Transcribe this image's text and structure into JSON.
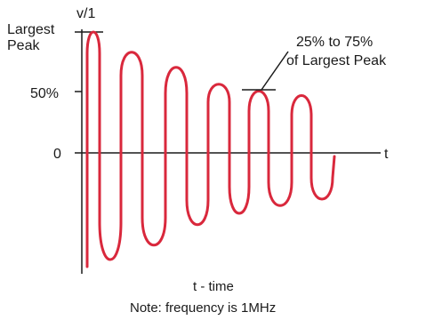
{
  "diagram": {
    "y_axis_label": "v/1",
    "x_axis_label": "t",
    "peak_label_line1": "Largest",
    "peak_label_line2": "Peak",
    "fifty_label": "50%",
    "zero_label": "0",
    "callout_line1": "25% to 75%",
    "callout_line2": "of Largest Peak",
    "caption_line1": "t - time",
    "caption_line2": "Note: frequency is 1MHz",
    "wave_color": "#d9283c",
    "ink_color": "#1a1a1a"
  }
}
